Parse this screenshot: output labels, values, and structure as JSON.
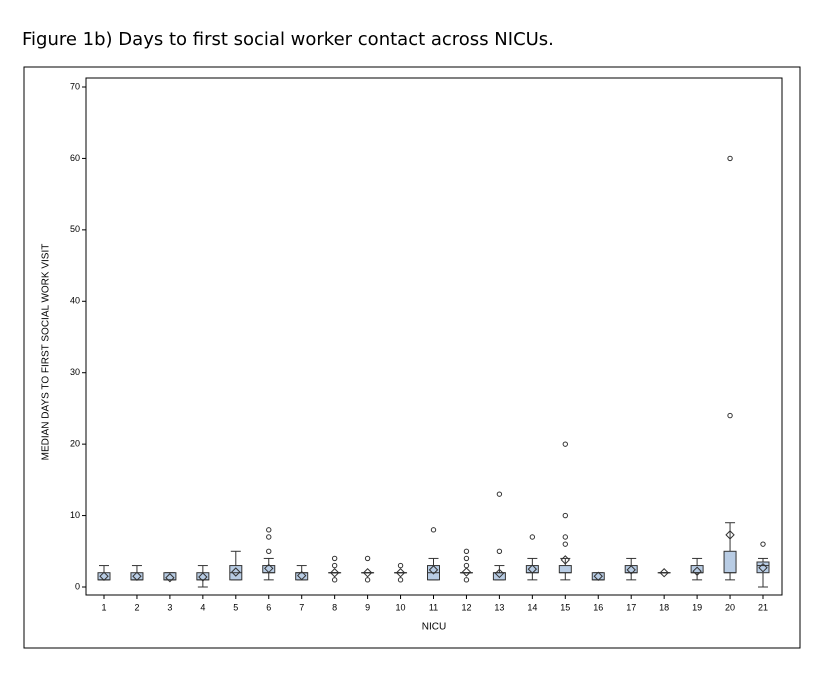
{
  "chart_data": {
    "type": "box",
    "title": "Figure 1b) Days to first social worker contact across NICUs.",
    "xlabel": "NICU",
    "ylabel": "MEDIAN DAYS TO FIRST SOCIAL WORK VISIT",
    "color": "#b8cce4",
    "categories": [
      "1",
      "2",
      "3",
      "4",
      "5",
      "6",
      "7",
      "8",
      "9",
      "10",
      "11",
      "12",
      "13",
      "14",
      "15",
      "16",
      "17",
      "18",
      "19",
      "20",
      "21"
    ],
    "boxes": [
      {
        "min": 1,
        "q1": 1,
        "median": 1,
        "q3": 2,
        "max": 3,
        "mean": 1.5,
        "outliers": []
      },
      {
        "min": 1,
        "q1": 1,
        "median": 1,
        "q3": 2,
        "max": 3,
        "mean": 1.5,
        "outliers": []
      },
      {
        "min": 1,
        "q1": 1,
        "median": 1,
        "q3": 2,
        "max": 2,
        "mean": 1.3,
        "outliers": []
      },
      {
        "min": 0,
        "q1": 1,
        "median": 1,
        "q3": 2,
        "max": 3,
        "mean": 1.4,
        "outliers": []
      },
      {
        "min": 1,
        "q1": 1,
        "median": 2,
        "q3": 3,
        "max": 5,
        "mean": 2.1,
        "outliers": []
      },
      {
        "min": 1,
        "q1": 2,
        "median": 2,
        "q3": 3,
        "max": 4,
        "mean": 2.6,
        "outliers": [
          5,
          7,
          8
        ]
      },
      {
        "min": 1,
        "q1": 1,
        "median": 2,
        "q3": 2,
        "max": 3,
        "mean": 1.6,
        "outliers": []
      },
      {
        "min": 2,
        "q1": 2,
        "median": 2,
        "q3": 2,
        "max": 2,
        "mean": 2,
        "outliers": [
          1,
          3,
          4
        ]
      },
      {
        "min": 2,
        "q1": 2,
        "median": 2,
        "q3": 2,
        "max": 2,
        "mean": 2,
        "outliers": [
          1,
          4
        ]
      },
      {
        "min": 2,
        "q1": 2,
        "median": 2,
        "q3": 2,
        "max": 2,
        "mean": 2,
        "outliers": [
          1,
          3
        ]
      },
      {
        "min": 1,
        "q1": 1,
        "median": 2,
        "q3": 3,
        "max": 4,
        "mean": 2.4,
        "outliers": [
          8
        ]
      },
      {
        "min": 2,
        "q1": 2,
        "median": 2,
        "q3": 2,
        "max": 2,
        "mean": 2.1,
        "outliers": [
          1,
          3,
          4,
          5
        ]
      },
      {
        "min": 1,
        "q1": 1,
        "median": 2,
        "q3": 2,
        "max": 3,
        "mean": 1.9,
        "outliers": [
          5,
          13
        ]
      },
      {
        "min": 1,
        "q1": 2,
        "median": 2,
        "q3": 3,
        "max": 4,
        "mean": 2.5,
        "outliers": [
          7
        ]
      },
      {
        "min": 1,
        "q1": 2,
        "median": 2,
        "q3": 3,
        "max": 4,
        "mean": 3.8,
        "outliers": [
          6,
          7,
          10,
          20
        ]
      },
      {
        "min": 1,
        "q1": 1,
        "median": 1,
        "q3": 2,
        "max": 2,
        "mean": 1.5,
        "outliers": []
      },
      {
        "min": 1,
        "q1": 2,
        "median": 2,
        "q3": 3,
        "max": 4,
        "mean": 2.4,
        "outliers": []
      },
      {
        "min": 2,
        "q1": 2,
        "median": 2,
        "q3": 2,
        "max": 2,
        "mean": 2,
        "outliers": []
      },
      {
        "min": 1,
        "q1": 2,
        "median": 2,
        "q3": 3,
        "max": 4,
        "mean": 2.2,
        "outliers": []
      },
      {
        "min": 1,
        "q1": 2,
        "median": 2,
        "q3": 5,
        "max": 9,
        "mean": 7.3,
        "outliers": [
          24,
          60
        ]
      },
      {
        "min": 0,
        "q1": 2,
        "median": 3,
        "q3": 3.5,
        "max": 4,
        "mean": 2.7,
        "outliers": [
          6
        ]
      }
    ],
    "ylim": [
      0,
      70
    ],
    "yticks": [
      0,
      10,
      20,
      30,
      40,
      50,
      60,
      70
    ]
  }
}
